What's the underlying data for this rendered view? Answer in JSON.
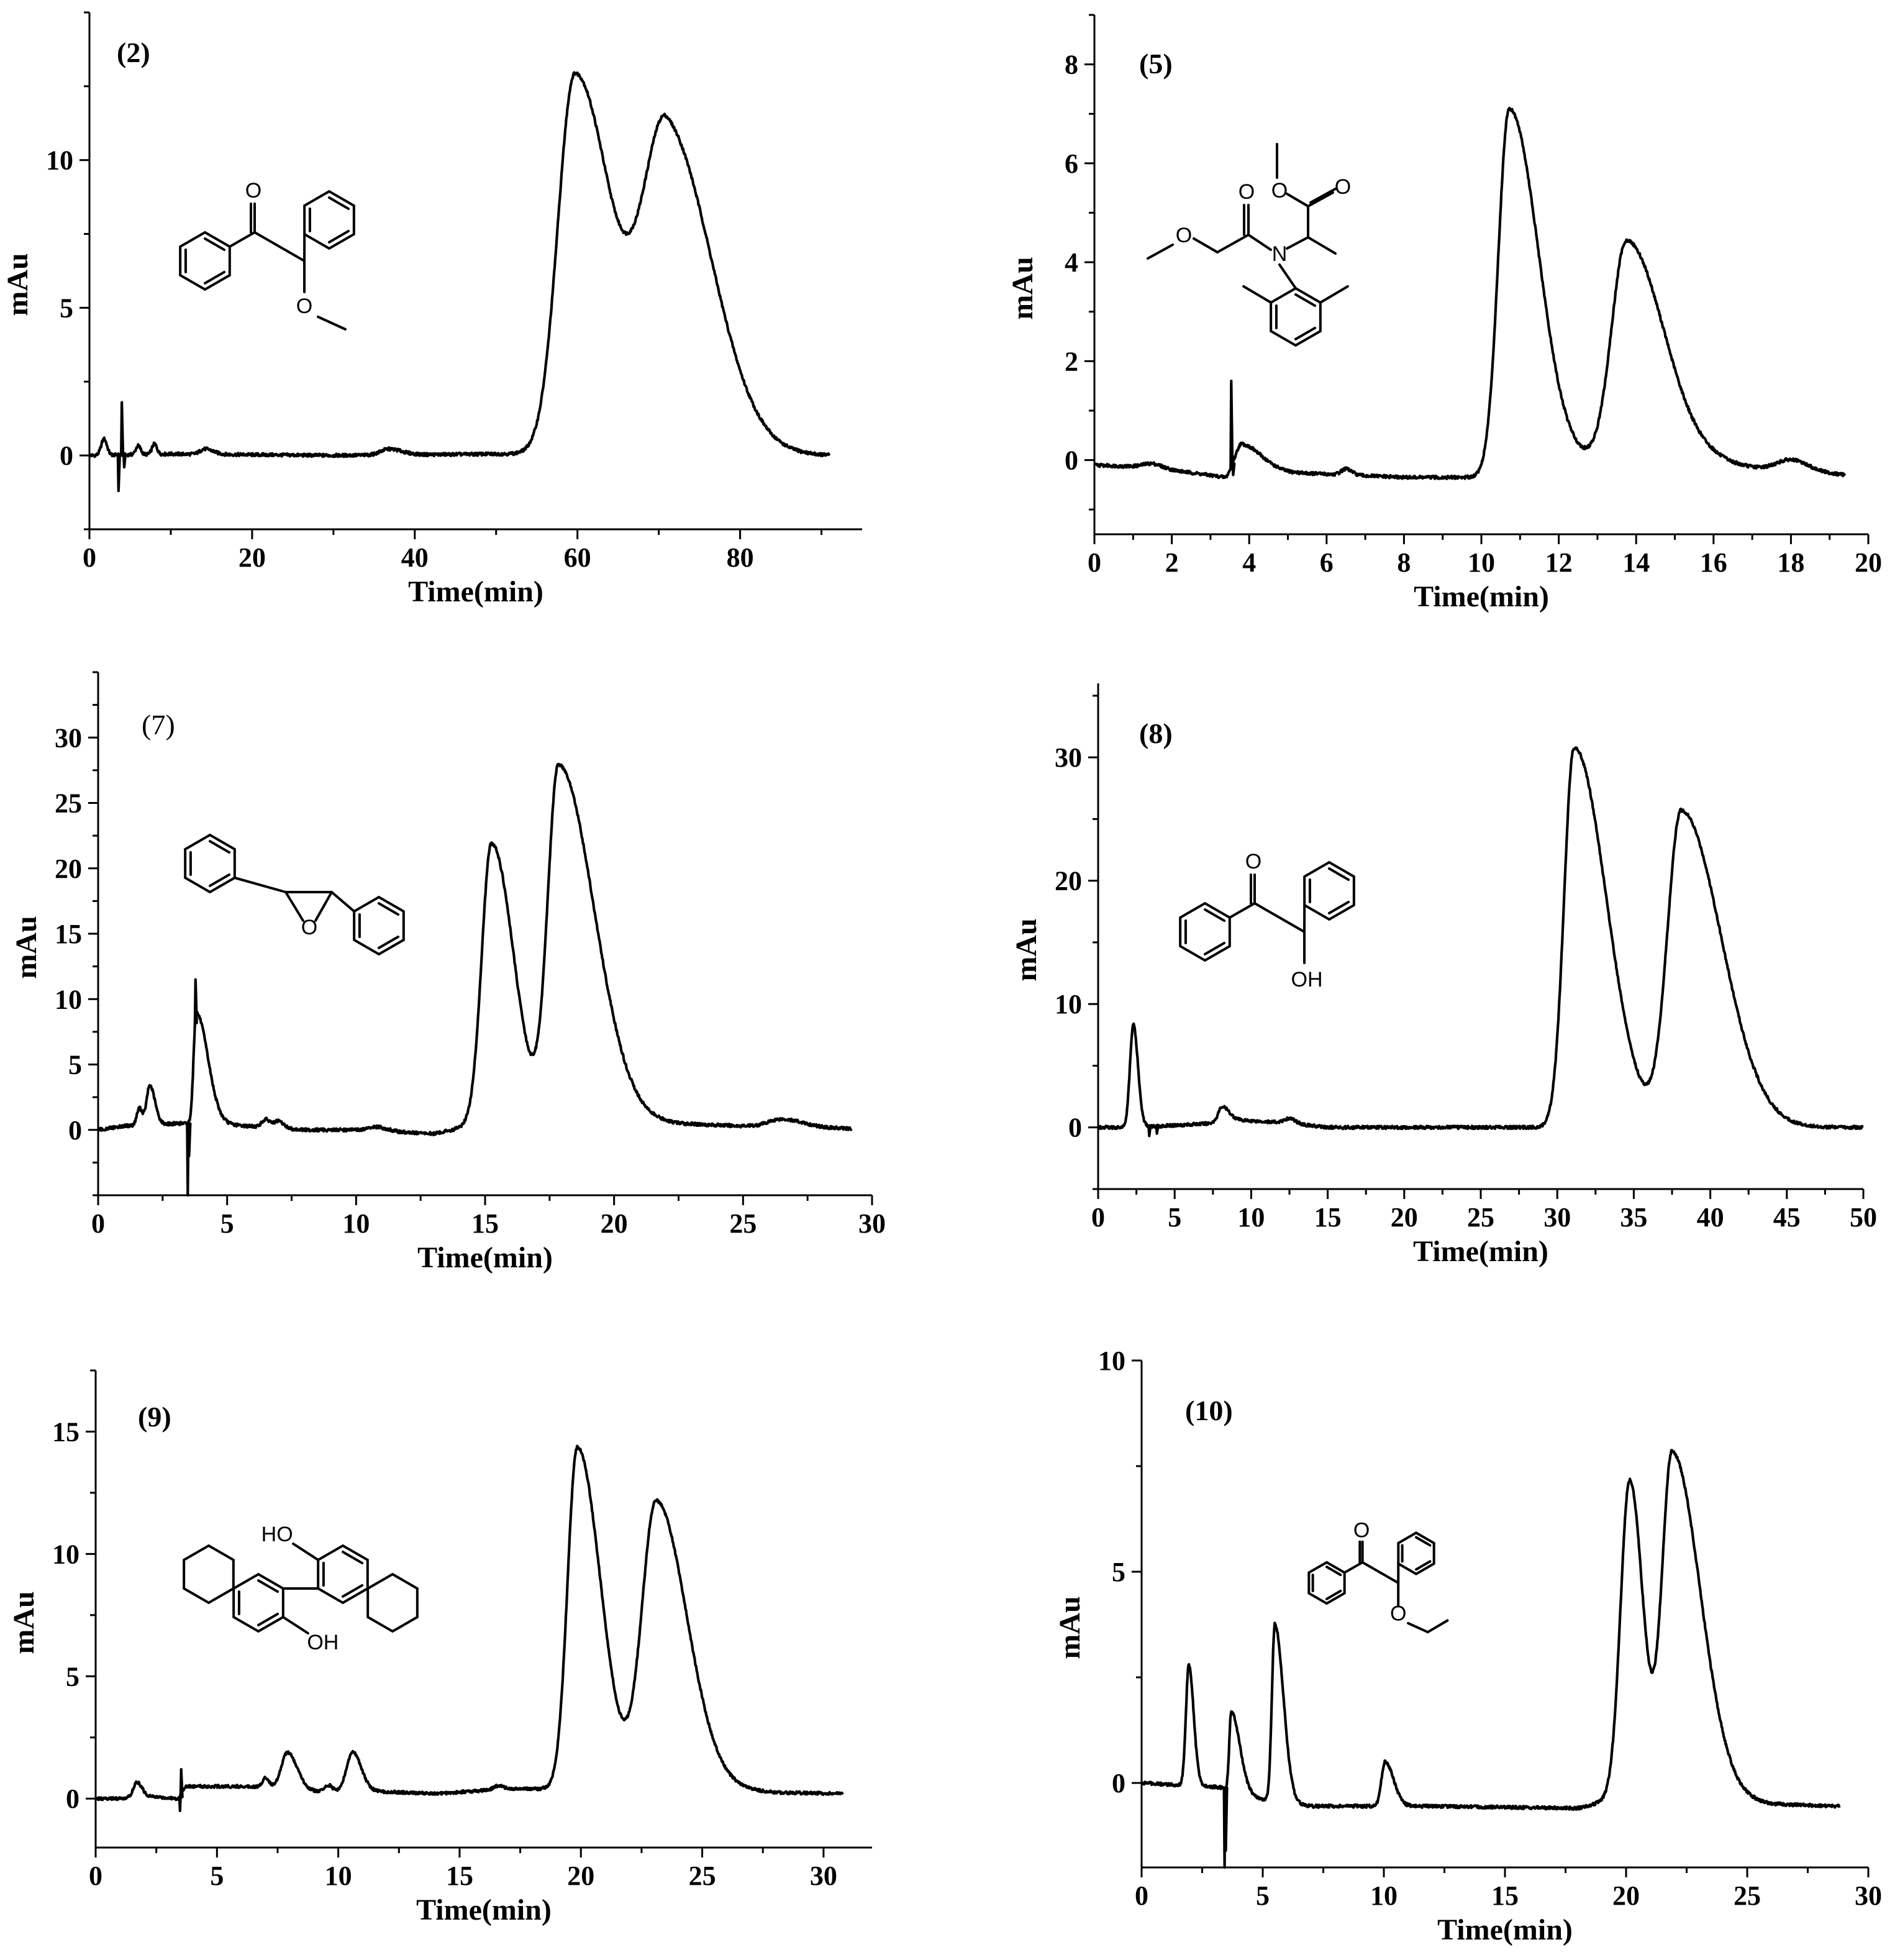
{
  "figure": {
    "description_label": "HPLC chromatograms of six racemic compounds"
  },
  "chart_data": [
    {
      "id": "p2",
      "type": "line",
      "panel_label": "(2)",
      "label_bold": true,
      "xlabel": "Time(min)",
      "ylabel": "mAu",
      "xlim": [
        0,
        95
      ],
      "ylim": [
        -2.5,
        15
      ],
      "xticks": [
        0,
        20,
        40,
        60,
        80
      ],
      "yticks": [
        0,
        5,
        10
      ],
      "molecule": "2-methoxy-1,2-diphenylethanone",
      "molecule_labels": [
        "O",
        "O"
      ],
      "series": [
        {
          "name": "UV signal",
          "end": 91,
          "baseline": [
            [
              0,
              0
            ],
            [
              10,
              0.05
            ],
            [
              30,
              0
            ],
            [
              50,
              0.05
            ],
            [
              52,
              0.05
            ],
            [
              65,
              0.03
            ],
            [
              80,
              0.05
            ],
            [
              91,
              0
            ]
          ],
          "peaks": [
            [
              59.7,
              12.9,
              2.1,
              4.6
            ],
            [
              71.0,
              10.8,
              2.9,
              5.5
            ],
            [
              1.8,
              0.55,
              0.35,
              0.35
            ],
            [
              6.0,
              0.3,
              0.3,
              0.3
            ],
            [
              8.0,
              0.35,
              0.3,
              0.3
            ],
            [
              14.2,
              0.18,
              0.6,
              1.0
            ],
            [
              36.8,
              0.2,
              1.0,
              1.6
            ]
          ],
          "spikes": [
            [
              3.5,
              -1.2
            ],
            [
              3.9,
              1.8
            ],
            [
              4.2,
              -0.4
            ]
          ]
        }
      ]
    },
    {
      "id": "p5",
      "type": "line",
      "panel_label": "(5)",
      "label_bold": true,
      "xlabel": "Time(min)",
      "ylabel": "mAu",
      "xlim": [
        0,
        20
      ],
      "ylim": [
        -1.5,
        9
      ],
      "xticks": [
        0,
        2,
        4,
        6,
        8,
        10,
        12,
        14,
        16,
        18,
        20
      ],
      "yticks": [
        0,
        2,
        4,
        6,
        8
      ],
      "molecule": "metalaxyl",
      "molecule_labels": [
        "O",
        "O",
        "O",
        "O",
        "N"
      ],
      "series": [
        {
          "name": "UV signal",
          "end": 19.4,
          "baseline": [
            [
              0,
              -0.1
            ],
            [
              1.5,
              -0.15
            ],
            [
              3.4,
              -0.35
            ],
            [
              3.6,
              -0.1
            ],
            [
              5,
              -0.25
            ],
            [
              8,
              -0.35
            ],
            [
              10,
              -0.35
            ],
            [
              12,
              -0.2
            ],
            [
              13.1,
              0
            ],
            [
              16,
              -0.05
            ],
            [
              17,
              -0.15
            ],
            [
              19.4,
              -0.3
            ]
          ],
          "peaks": [
            [
              10.72,
              7.4,
              0.28,
              0.75
            ],
            [
              13.75,
              4.45,
              0.38,
              0.95
            ],
            [
              3.8,
              0.45,
              0.12,
              0.5
            ],
            [
              1.5,
              0.08,
              0.25,
              0.25
            ],
            [
              6.5,
              0.12,
              0.12,
              0.15
            ],
            [
              18.0,
              0.22,
              0.35,
              0.45
            ]
          ],
          "spikes": [
            [
              3.52,
              1.6
            ],
            [
              3.57,
              -0.3
            ]
          ]
        }
      ]
    },
    {
      "id": "p7",
      "type": "line",
      "panel_label": "(7)",
      "label_bold": false,
      "xlabel": "Time(min)",
      "ylabel": "mAu",
      "xlim": [
        0,
        30
      ],
      "ylim": [
        -5,
        35
      ],
      "xticks": [
        0,
        5,
        10,
        15,
        20,
        25,
        30
      ],
      "yticks": [
        0,
        5,
        10,
        15,
        20,
        25,
        30
      ],
      "molecule": "stilbene oxide",
      "molecule_labels": [
        "O"
      ],
      "series": [
        {
          "name": "UV signal",
          "end": 29.2,
          "baseline": [
            [
              0,
              0
            ],
            [
              1,
              0.3
            ],
            [
              3.2,
              0.5
            ],
            [
              5,
              0.4
            ],
            [
              8,
              0
            ],
            [
              10,
              0
            ],
            [
              13,
              -0.3
            ],
            [
              14.2,
              0.2
            ],
            [
              20,
              0.8
            ],
            [
              22,
              0.5
            ],
            [
              25,
              0.3
            ],
            [
              29.2,
              0.1
            ]
          ],
          "peaks": [
            [
              15.25,
              21.6,
              0.38,
              0.85
            ],
            [
              17.85,
              27.2,
              0.42,
              1.35
            ],
            [
              3.8,
              8.5,
              0.1,
              0.45
            ],
            [
              2.0,
              3.0,
              0.12,
              0.2
            ],
            [
              1.6,
              1.3,
              0.1,
              0.12
            ],
            [
              6.5,
              0.6,
              0.15,
              0.2
            ],
            [
              7.0,
              0.5,
              0.15,
              0.2
            ],
            [
              10.8,
              0.3,
              0.3,
              0.4
            ],
            [
              26.5,
              0.6,
              0.5,
              0.8
            ]
          ],
          "spikes": [
            [
              3.45,
              -5.0
            ],
            [
              3.5,
              -2.0
            ],
            [
              3.75,
              11.5
            ]
          ]
        }
      ]
    },
    {
      "id": "p8",
      "type": "line",
      "panel_label": "(8)",
      "label_bold": true,
      "xlabel": "Time(min)",
      "ylabel": "mAu",
      "xlim": [
        0,
        50
      ],
      "ylim": [
        -5,
        36
      ],
      "xticks": [
        0,
        5,
        10,
        15,
        20,
        25,
        30,
        35,
        40,
        45,
        50
      ],
      "yticks": [
        0,
        10,
        20,
        30
      ],
      "molecule": "benzoin",
      "molecule_labels": [
        "O",
        "OH"
      ],
      "series": [
        {
          "name": "UV signal",
          "end": 50,
          "baseline": [
            [
              0,
              0
            ],
            [
              2,
              0
            ],
            [
              4,
              0.1
            ],
            [
              7,
              0.3
            ],
            [
              9,
              0.6
            ],
            [
              12,
              0.4
            ],
            [
              15,
              0
            ],
            [
              30,
              0
            ],
            [
              50,
              0
            ]
          ],
          "peaks": [
            [
              31.1,
              30.8,
              0.65,
              2.1
            ],
            [
              38.1,
              25.6,
              0.9,
              2.6
            ],
            [
              2.3,
              8.3,
              0.22,
              0.3
            ],
            [
              8.1,
              1.2,
              0.25,
              0.45
            ],
            [
              12.5,
              0.4,
              0.3,
              0.4
            ]
          ],
          "spikes": [
            [
              3.3,
              -0.7
            ],
            [
              3.8,
              -0.5
            ]
          ]
        }
      ]
    },
    {
      "id": "p9",
      "type": "line",
      "panel_label": "(9)",
      "label_bold": true,
      "xlabel": "Time(min)",
      "ylabel": "mAu",
      "xlim": [
        0,
        32
      ],
      "ylim": [
        -2,
        17.5
      ],
      "xticks": [
        0,
        5,
        10,
        15,
        20,
        25,
        30
      ],
      "yticks": [
        0,
        5,
        10,
        15
      ],
      "molecule": "octahydro-BINOL",
      "molecule_labels": [
        "HO",
        "OH"
      ],
      "series": [
        {
          "name": "UV signal",
          "end": 30.8,
          "baseline": [
            [
              0,
              0
            ],
            [
              1,
              0
            ],
            [
              2,
              0.1
            ],
            [
              3.4,
              0
            ],
            [
              3.7,
              0.5
            ],
            [
              6.5,
              0.5
            ],
            [
              9,
              0.3
            ],
            [
              11.5,
              0.3
            ],
            [
              14,
              0.2
            ],
            [
              17,
              0.4
            ],
            [
              19,
              0.4
            ],
            [
              22,
              0.6
            ],
            [
              25,
              0.5
            ],
            [
              28,
              0.25
            ],
            [
              30.8,
              0.2
            ]
          ],
          "peaks": [
            [
              19.85,
              13.9,
              0.4,
              0.95
            ],
            [
              23.1,
              11.6,
              0.58,
              1.25
            ],
            [
              7.9,
              1.5,
              0.25,
              0.4
            ],
            [
              10.6,
              1.6,
              0.25,
              0.35
            ],
            [
              1.7,
              0.6,
              0.15,
              0.2
            ],
            [
              7.0,
              0.4,
              0.12,
              0.15
            ],
            [
              9.6,
              0.25,
              0.15,
              0.15
            ],
            [
              16.6,
              0.15,
              0.2,
              0.2
            ]
          ],
          "spikes": [
            [
              3.45,
              -0.5
            ],
            [
              3.5,
              1.2
            ]
          ]
        }
      ]
    },
    {
      "id": "p10",
      "type": "line",
      "panel_label": "(10)",
      "label_bold": true,
      "xlabel": "Time(min)",
      "ylabel": "mAu",
      "xlim": [
        0,
        30
      ],
      "ylim": [
        -2,
        10
      ],
      "xticks": [
        0,
        5,
        10,
        15,
        20,
        25,
        30
      ],
      "yticks": [
        0,
        5,
        10
      ],
      "molecule": "benzoin ethyl ether",
      "molecule_labels": [
        "O",
        "O"
      ],
      "series": [
        {
          "name": "UV signal",
          "end": 28.8,
          "baseline": [
            [
              0,
              0
            ],
            [
              1.5,
              -0.05
            ],
            [
              3.2,
              -0.1
            ],
            [
              4,
              -0.2
            ],
            [
              5,
              -0.4
            ],
            [
              7,
              -0.55
            ],
            [
              10,
              -0.55
            ],
            [
              12,
              -0.55
            ],
            [
              18,
              -0.6
            ],
            [
              19,
              -0.45
            ],
            [
              24,
              -0.35
            ],
            [
              26,
              -0.5
            ],
            [
              28.8,
              -0.55
            ]
          ],
          "peaks": [
            [
              20.15,
              7.6,
              0.38,
              0.55
            ],
            [
              21.9,
              8.2,
              0.42,
              1.15
            ],
            [
              1.95,
              2.85,
              0.12,
              0.2
            ],
            [
              3.7,
              1.85,
              0.08,
              0.35
            ],
            [
              5.5,
              4.2,
              0.12,
              0.35
            ],
            [
              10.05,
              1.05,
              0.15,
              0.35
            ]
          ],
          "spikes": [
            [
              3.4,
              -2.0
            ],
            [
              3.45,
              -1.6
            ]
          ]
        }
      ]
    }
  ]
}
